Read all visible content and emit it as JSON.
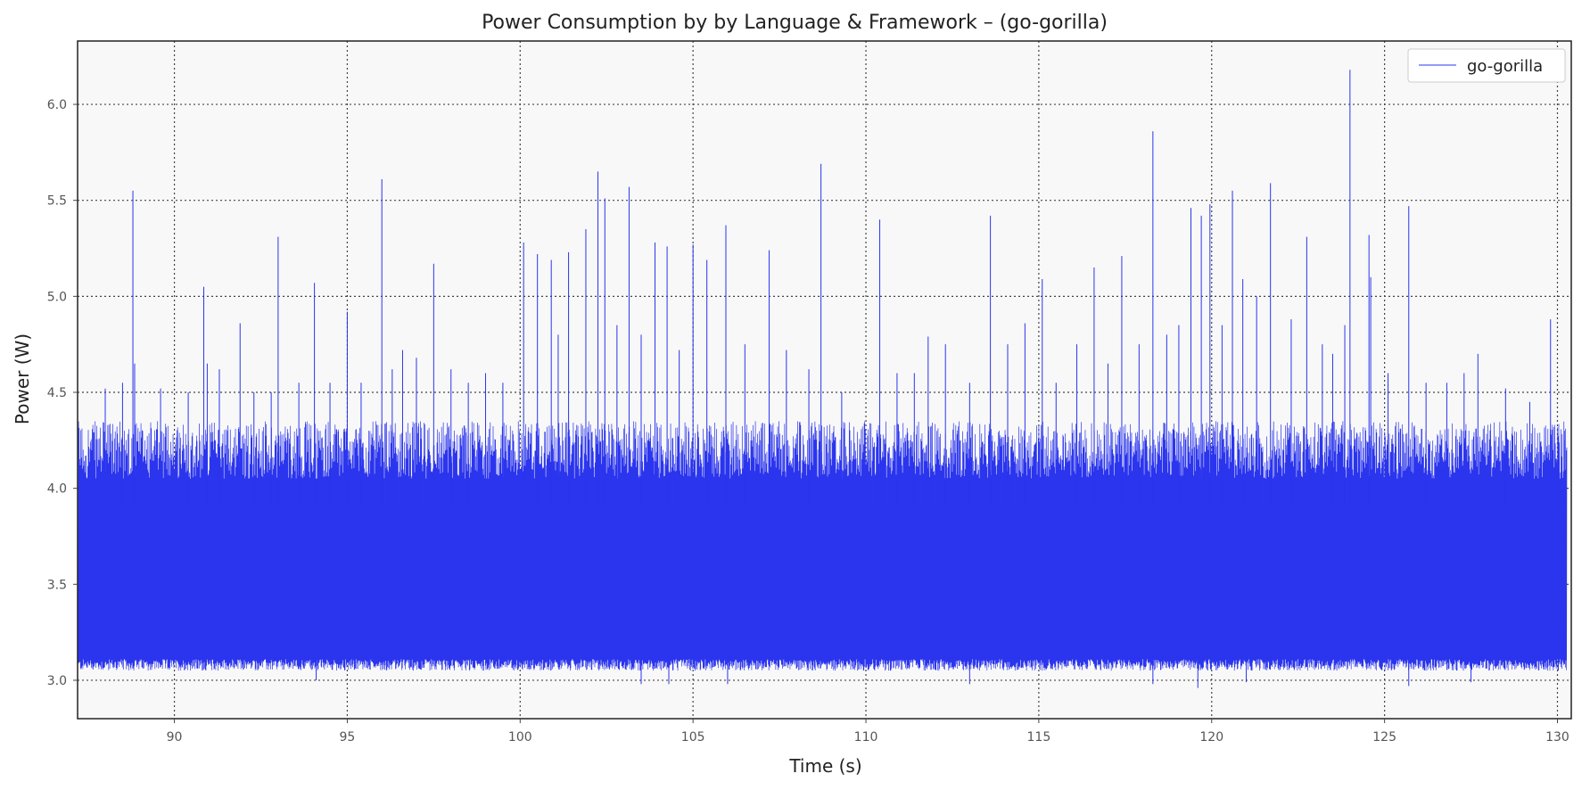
{
  "chart_data": {
    "type": "line",
    "title": "Power Consumption by by Language & Framework – (go-gorilla)",
    "xlabel": "Time (s)",
    "ylabel": "Power (W)",
    "xlim": [
      87.2,
      130.4
    ],
    "ylim": [
      2.8,
      6.33
    ],
    "x_ticks": [
      90,
      95,
      100,
      105,
      110,
      115,
      120,
      125,
      130
    ],
    "y_ticks": [
      3.0,
      3.5,
      4.0,
      4.5,
      5.0,
      5.5,
      6.0
    ],
    "x_tick_labels": [
      "90",
      "95",
      "100",
      "105",
      "110",
      "115",
      "120",
      "125",
      "130"
    ],
    "y_tick_labels": [
      "3.0",
      "3.5",
      "4.0",
      "4.5",
      "5.0",
      "5.5",
      "6.0"
    ],
    "grid": true,
    "legend_position": "top-right",
    "colors": {
      "series": "#2b35ee",
      "plot_background": "#f8f8f8",
      "grid": "#444444"
    },
    "series": [
      {
        "name": "go-gorilla",
        "baseline_range": [
          3.05,
          4.2
        ],
        "description_level": "dense high-frequency oscillation between ~3.05 W and ~4.2 W",
        "spikes": [
          {
            "x": 88.0,
            "y": 4.52
          },
          {
            "x": 88.5,
            "y": 4.55
          },
          {
            "x": 88.8,
            "y": 5.55
          },
          {
            "x": 88.85,
            "y": 4.65
          },
          {
            "x": 89.6,
            "y": 4.52
          },
          {
            "x": 90.4,
            "y": 4.5
          },
          {
            "x": 90.85,
            "y": 5.05
          },
          {
            "x": 90.95,
            "y": 4.65
          },
          {
            "x": 91.3,
            "y": 4.62
          },
          {
            "x": 91.9,
            "y": 4.86
          },
          {
            "x": 92.3,
            "y": 4.5
          },
          {
            "x": 92.8,
            "y": 4.5
          },
          {
            "x": 93.0,
            "y": 5.31
          },
          {
            "x": 93.6,
            "y": 4.55
          },
          {
            "x": 94.05,
            "y": 5.07
          },
          {
            "x": 94.5,
            "y": 4.55
          },
          {
            "x": 95.0,
            "y": 4.92
          },
          {
            "x": 95.4,
            "y": 4.55
          },
          {
            "x": 96.0,
            "y": 5.61
          },
          {
            "x": 96.3,
            "y": 4.62
          },
          {
            "x": 96.6,
            "y": 4.72
          },
          {
            "x": 97.0,
            "y": 4.68
          },
          {
            "x": 97.5,
            "y": 5.17
          },
          {
            "x": 98.0,
            "y": 4.62
          },
          {
            "x": 98.5,
            "y": 4.55
          },
          {
            "x": 99.0,
            "y": 4.6
          },
          {
            "x": 99.5,
            "y": 4.55
          },
          {
            "x": 100.1,
            "y": 5.28
          },
          {
            "x": 100.5,
            "y": 5.22
          },
          {
            "x": 100.9,
            "y": 5.19
          },
          {
            "x": 101.1,
            "y": 4.8
          },
          {
            "x": 101.4,
            "y": 5.23
          },
          {
            "x": 101.9,
            "y": 5.35
          },
          {
            "x": 102.25,
            "y": 5.65
          },
          {
            "x": 102.45,
            "y": 5.51
          },
          {
            "x": 102.8,
            "y": 4.85
          },
          {
            "x": 103.15,
            "y": 5.57
          },
          {
            "x": 103.5,
            "y": 4.8
          },
          {
            "x": 103.9,
            "y": 5.28
          },
          {
            "x": 104.25,
            "y": 5.26
          },
          {
            "x": 104.6,
            "y": 4.72
          },
          {
            "x": 105.0,
            "y": 5.27
          },
          {
            "x": 105.4,
            "y": 5.19
          },
          {
            "x": 105.95,
            "y": 5.37
          },
          {
            "x": 106.5,
            "y": 4.75
          },
          {
            "x": 107.2,
            "y": 5.24
          },
          {
            "x": 107.7,
            "y": 4.72
          },
          {
            "x": 108.35,
            "y": 4.62
          },
          {
            "x": 108.7,
            "y": 5.69
          },
          {
            "x": 109.3,
            "y": 4.5
          },
          {
            "x": 110.4,
            "y": 5.4
          },
          {
            "x": 110.9,
            "y": 4.6
          },
          {
            "x": 111.4,
            "y": 4.6
          },
          {
            "x": 111.8,
            "y": 4.79
          },
          {
            "x": 112.3,
            "y": 4.75
          },
          {
            "x": 113.0,
            "y": 4.55
          },
          {
            "x": 113.6,
            "y": 5.42
          },
          {
            "x": 114.1,
            "y": 4.75
          },
          {
            "x": 114.6,
            "y": 4.86
          },
          {
            "x": 115.1,
            "y": 5.09
          },
          {
            "x": 115.5,
            "y": 4.55
          },
          {
            "x": 116.1,
            "y": 4.75
          },
          {
            "x": 116.6,
            "y": 5.15
          },
          {
            "x": 117.0,
            "y": 4.65
          },
          {
            "x": 117.4,
            "y": 5.21
          },
          {
            "x": 117.9,
            "y": 4.75
          },
          {
            "x": 118.3,
            "y": 5.86
          },
          {
            "x": 118.7,
            "y": 4.8
          },
          {
            "x": 119.05,
            "y": 4.85
          },
          {
            "x": 119.4,
            "y": 5.46
          },
          {
            "x": 119.7,
            "y": 5.42
          },
          {
            "x": 119.95,
            "y": 5.48
          },
          {
            "x": 120.3,
            "y": 4.85
          },
          {
            "x": 120.6,
            "y": 5.55
          },
          {
            "x": 120.9,
            "y": 5.09
          },
          {
            "x": 121.3,
            "y": 5.0
          },
          {
            "x": 121.7,
            "y": 5.59
          },
          {
            "x": 122.3,
            "y": 4.88
          },
          {
            "x": 122.75,
            "y": 5.31
          },
          {
            "x": 123.2,
            "y": 4.75
          },
          {
            "x": 123.5,
            "y": 4.7
          },
          {
            "x": 123.85,
            "y": 4.85
          },
          {
            "x": 124.0,
            "y": 6.18
          },
          {
            "x": 124.55,
            "y": 5.32
          },
          {
            "x": 124.6,
            "y": 5.1
          },
          {
            "x": 125.1,
            "y": 4.6
          },
          {
            "x": 125.7,
            "y": 5.47
          },
          {
            "x": 126.2,
            "y": 4.55
          },
          {
            "x": 126.8,
            "y": 4.55
          },
          {
            "x": 127.3,
            "y": 4.6
          },
          {
            "x": 127.7,
            "y": 4.7
          },
          {
            "x": 128.5,
            "y": 4.52
          },
          {
            "x": 129.2,
            "y": 4.45
          },
          {
            "x": 129.8,
            "y": 4.88
          },
          {
            "x": 130.2,
            "y": 4.3
          }
        ],
        "dips": [
          {
            "x": 94.1,
            "y": 3.0
          },
          {
            "x": 103.5,
            "y": 2.98
          },
          {
            "x": 104.3,
            "y": 2.98
          },
          {
            "x": 106.0,
            "y": 2.98
          },
          {
            "x": 113.0,
            "y": 2.98
          },
          {
            "x": 118.3,
            "y": 2.98
          },
          {
            "x": 119.6,
            "y": 2.96
          },
          {
            "x": 121.0,
            "y": 2.99
          },
          {
            "x": 125.7,
            "y": 2.97
          },
          {
            "x": 127.5,
            "y": 2.99
          }
        ]
      }
    ]
  }
}
